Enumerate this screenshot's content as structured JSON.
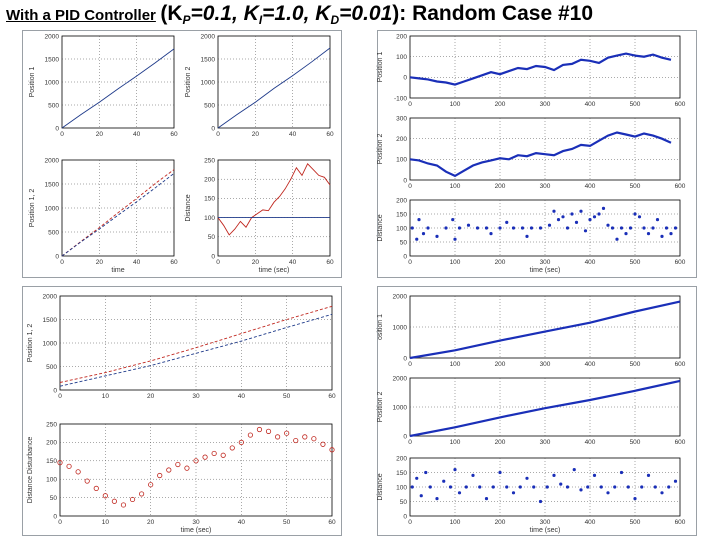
{
  "title": {
    "prefix": "With a PID Controller",
    "k_open": "(K",
    "kp_sub": "P",
    "kp_val": "=0.1, K",
    "ki_sub": "I",
    "ki_val": "=1.0, K",
    "kd_sub": "D",
    "kd_val": "=0.01",
    "suffix": "): Random Case #10"
  },
  "colors": {
    "blue_dark": "#1e3a8a",
    "blue": "#1a2fb8",
    "red": "#c0271f"
  },
  "chart_data": [
    {
      "id": "q1a",
      "type": "line",
      "ylabel": "Position 1",
      "xlabel": "",
      "xlim": [
        0,
        60
      ],
      "ylim": [
        0,
        2000
      ],
      "xticks": [
        0,
        20,
        40,
        60
      ],
      "yticks": [
        0,
        500,
        1000,
        1500,
        2000
      ],
      "grid": true,
      "series": [
        {
          "color": "blue_dark",
          "dashed": false,
          "x": [
            0,
            10,
            20,
            30,
            40,
            50,
            60
          ],
          "y": [
            0,
            290,
            560,
            850,
            1130,
            1420,
            1720
          ]
        }
      ]
    },
    {
      "id": "q1b",
      "type": "line",
      "ylabel": "Position 2",
      "xlabel": "",
      "xlim": [
        0,
        60
      ],
      "ylim": [
        0,
        2000
      ],
      "xticks": [
        0,
        20,
        40,
        60
      ],
      "yticks": [
        0,
        500,
        1000,
        1500,
        2000
      ],
      "grid": true,
      "series": [
        {
          "color": "blue_dark",
          "dashed": false,
          "x": [
            0,
            10,
            20,
            30,
            40,
            50,
            60
          ],
          "y": [
            0,
            290,
            560,
            860,
            1140,
            1430,
            1740
          ]
        }
      ]
    },
    {
      "id": "q1c",
      "type": "line",
      "ylabel": "Position 1, 2",
      "xlabel": "time",
      "xlim": [
        0,
        60
      ],
      "ylim": [
        0,
        2000
      ],
      "xticks": [
        0,
        20,
        40,
        60
      ],
      "yticks": [
        0,
        500,
        1000,
        1500,
        2000
      ],
      "grid": true,
      "series": [
        {
          "color": "red",
          "dashed": true,
          "x": [
            0,
            10,
            20,
            30,
            40,
            50,
            60
          ],
          "y": [
            0,
            300,
            590,
            900,
            1200,
            1510,
            1800
          ]
        },
        {
          "color": "blue_dark",
          "dashed": true,
          "x": [
            0,
            10,
            20,
            30,
            40,
            50,
            60
          ],
          "y": [
            0,
            290,
            560,
            850,
            1130,
            1420,
            1720
          ]
        }
      ]
    },
    {
      "id": "q1d",
      "type": "line",
      "ylabel": "Distance",
      "xlabel": "time (sec)",
      "xlim": [
        0,
        60
      ],
      "ylim": [
        0,
        250
      ],
      "xticks": [
        0,
        20,
        40,
        60
      ],
      "yticks": [
        0,
        50,
        100,
        150,
        200,
        250
      ],
      "grid": true,
      "series": [
        {
          "color": "red",
          "dashed": false,
          "x": [
            0,
            3,
            6,
            9,
            12,
            15,
            18,
            21,
            24,
            27,
            30,
            33,
            36,
            39,
            42,
            45,
            48,
            51,
            54,
            57,
            60
          ],
          "y": [
            100,
            80,
            55,
            70,
            90,
            75,
            100,
            110,
            120,
            118,
            140,
            155,
            175,
            200,
            230,
            210,
            240,
            225,
            210,
            205,
            185
          ]
        },
        {
          "color": "blue_dark",
          "dashed": false,
          "x": [
            0,
            60
          ],
          "y": [
            100,
            100
          ]
        }
      ]
    },
    {
      "id": "q2a",
      "type": "line",
      "ylabel": "Position 1",
      "xlabel": "",
      "xlim": [
        0,
        600
      ],
      "ylim": [
        -100,
        200
      ],
      "xticks": [
        0,
        100,
        200,
        300,
        400,
        500,
        600
      ],
      "yticks": [
        -100,
        0,
        100,
        200
      ],
      "grid": true,
      "series": [
        {
          "color": "blue",
          "dashed": false,
          "thick": true,
          "x": [
            0,
            20,
            40,
            60,
            80,
            100,
            120,
            140,
            160,
            180,
            200,
            220,
            240,
            260,
            280,
            300,
            320,
            340,
            360,
            380,
            400,
            420,
            440,
            460,
            480,
            500,
            520,
            540,
            560,
            580
          ],
          "y": [
            0,
            -5,
            -10,
            -20,
            -25,
            -35,
            -20,
            -5,
            10,
            25,
            15,
            30,
            45,
            40,
            55,
            50,
            35,
            60,
            65,
            85,
            80,
            70,
            95,
            105,
            115,
            105,
            100,
            110,
            95,
            85
          ]
        }
      ]
    },
    {
      "id": "q2b",
      "type": "line",
      "ylabel": "Position 2",
      "xlabel": "",
      "xlim": [
        0,
        600
      ],
      "ylim": [
        0,
        300
      ],
      "xticks": [
        0,
        100,
        200,
        300,
        400,
        500,
        600
      ],
      "yticks": [
        0,
        100,
        200,
        300
      ],
      "grid": true,
      "series": [
        {
          "color": "blue",
          "dashed": false,
          "thick": true,
          "x": [
            0,
            20,
            40,
            60,
            80,
            100,
            120,
            140,
            160,
            180,
            200,
            220,
            240,
            260,
            280,
            300,
            320,
            340,
            360,
            380,
            400,
            420,
            440,
            460,
            480,
            500,
            520,
            540,
            560,
            580
          ],
          "y": [
            100,
            95,
            80,
            70,
            40,
            20,
            45,
            70,
            85,
            95,
            105,
            100,
            120,
            115,
            130,
            125,
            120,
            140,
            150,
            170,
            165,
            190,
            215,
            230,
            220,
            210,
            225,
            215,
            200,
            180
          ]
        }
      ]
    },
    {
      "id": "q2c",
      "type": "scatter",
      "ylabel": "Distance",
      "xlabel": "time (sec)",
      "xlim": [
        0,
        600
      ],
      "ylim": [
        0,
        200
      ],
      "xticks": [
        0,
        100,
        200,
        300,
        400,
        500,
        600
      ],
      "yticks": [
        0,
        50,
        100,
        150,
        200
      ],
      "grid": true,
      "series": [
        {
          "color": "blue",
          "dashed": false,
          "x": [
            5,
            15,
            20,
            30,
            40,
            60,
            80,
            95,
            100,
            110,
            130,
            150,
            170,
            180,
            200,
            215,
            230,
            250,
            260,
            270,
            290,
            310,
            320,
            330,
            340,
            350,
            360,
            370,
            380,
            390,
            400,
            410,
            420,
            430,
            440,
            450,
            460,
            470,
            480,
            490,
            500,
            510,
            520,
            530,
            540,
            550,
            560,
            570,
            580,
            590
          ],
          "y": [
            100,
            60,
            130,
            80,
            100,
            70,
            100,
            130,
            60,
            100,
            110,
            100,
            100,
            80,
            100,
            120,
            100,
            100,
            70,
            100,
            100,
            110,
            160,
            130,
            140,
            100,
            150,
            120,
            160,
            90,
            130,
            140,
            150,
            170,
            110,
            100,
            60,
            100,
            80,
            100,
            150,
            140,
            100,
            80,
            100,
            130,
            70,
            100,
            80,
            100
          ]
        }
      ]
    },
    {
      "id": "q3a",
      "type": "line",
      "ylabel": "Position 1, 2",
      "xlabel": "",
      "xlim": [
        0,
        60
      ],
      "ylim": [
        0,
        2000
      ],
      "xticks": [
        0,
        10,
        20,
        30,
        40,
        50,
        60
      ],
      "yticks": [
        0,
        500,
        1000,
        1500,
        2000
      ],
      "grid": true,
      "series": [
        {
          "color": "red",
          "dashed": true,
          "x": [
            0,
            10,
            20,
            30,
            40,
            50,
            60
          ],
          "y": [
            160,
            370,
            620,
            900,
            1200,
            1500,
            1780
          ]
        },
        {
          "color": "blue_dark",
          "dashed": true,
          "x": [
            0,
            10,
            20,
            30,
            40,
            50,
            60
          ],
          "y": [
            80,
            300,
            520,
            780,
            1040,
            1330,
            1610
          ]
        }
      ]
    },
    {
      "id": "q3b",
      "type": "scatter",
      "ylabel": "Distance Disturbance",
      "xlabel": "time (sec)",
      "xlim": [
        0,
        60
      ],
      "ylim": [
        0,
        250
      ],
      "xticks": [
        0,
        10,
        20,
        30,
        40,
        50,
        60
      ],
      "yticks": [
        0,
        50,
        100,
        150,
        200,
        250
      ],
      "grid": true,
      "series": [
        {
          "color": "red",
          "dashed": false,
          "x": [
            0,
            2,
            4,
            6,
            8,
            10,
            12,
            14,
            16,
            18,
            20,
            22,
            24,
            26,
            28,
            30,
            32,
            34,
            36,
            38,
            40,
            42,
            44,
            46,
            48,
            50,
            52,
            54,
            56,
            58,
            60
          ],
          "y": [
            145,
            135,
            120,
            95,
            75,
            55,
            40,
            30,
            45,
            60,
            85,
            110,
            125,
            140,
            130,
            150,
            160,
            170,
            165,
            185,
            200,
            220,
            235,
            230,
            215,
            225,
            205,
            215,
            210,
            195,
            180
          ]
        }
      ]
    },
    {
      "id": "q4a",
      "type": "line",
      "ylabel": "osition 1",
      "xlabel": "",
      "xlim": [
        0,
        600
      ],
      "ylim": [
        0,
        2000
      ],
      "xticks": [
        0,
        100,
        200,
        300,
        400,
        500,
        600
      ],
      "yticks": [
        0,
        1000,
        2000
      ],
      "grid": true,
      "series": [
        {
          "color": "blue",
          "dashed": false,
          "thick": true,
          "x": [
            0,
            100,
            200,
            300,
            400,
            500,
            600
          ],
          "y": [
            0,
            250,
            560,
            850,
            1140,
            1500,
            1820
          ]
        }
      ]
    },
    {
      "id": "q4b",
      "type": "line",
      "ylabel": "Position 2",
      "xlabel": "",
      "xlim": [
        0,
        600
      ],
      "ylim": [
        0,
        2000
      ],
      "xticks": [
        0,
        100,
        200,
        300,
        400,
        500,
        600
      ],
      "yticks": [
        0,
        1000,
        2000
      ],
      "grid": true,
      "series": [
        {
          "color": "blue",
          "dashed": false,
          "thick": true,
          "x": [
            0,
            100,
            200,
            300,
            400,
            500,
            600
          ],
          "y": [
            0,
            300,
            640,
            960,
            1240,
            1560,
            1900
          ]
        }
      ]
    },
    {
      "id": "q4c",
      "type": "scatter",
      "ylabel": "Distance",
      "xlabel": "time (sec)",
      "xlim": [
        0,
        600
      ],
      "ylim": [
        0,
        200
      ],
      "xticks": [
        0,
        100,
        200,
        300,
        400,
        500,
        600
      ],
      "yticks": [
        0,
        50,
        100,
        150,
        200
      ],
      "grid": true,
      "series": [
        {
          "color": "blue",
          "dashed": false,
          "x": [
            5,
            15,
            25,
            35,
            45,
            60,
            75,
            90,
            100,
            110,
            125,
            140,
            155,
            170,
            185,
            200,
            215,
            230,
            245,
            260,
            275,
            290,
            305,
            320,
            335,
            350,
            365,
            380,
            395,
            410,
            425,
            440,
            455,
            470,
            485,
            500,
            515,
            530,
            545,
            560,
            575,
            590
          ],
          "y": [
            100,
            130,
            70,
            150,
            100,
            60,
            120,
            100,
            160,
            80,
            100,
            140,
            100,
            60,
            100,
            150,
            100,
            80,
            100,
            130,
            100,
            50,
            100,
            140,
            110,
            100,
            160,
            90,
            100,
            140,
            100,
            80,
            100,
            150,
            100,
            60,
            100,
            140,
            100,
            80,
            100,
            120
          ]
        }
      ]
    }
  ]
}
